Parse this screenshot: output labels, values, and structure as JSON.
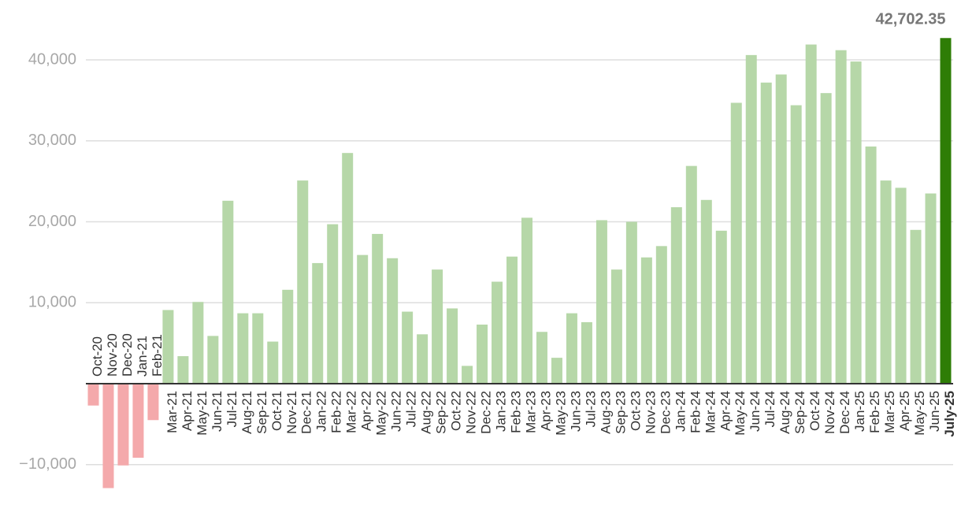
{
  "chart_data": {
    "type": "bar",
    "categories": [
      "Oct-20",
      "Nov-20",
      "Dec-20",
      "Jan-21",
      "Feb-21",
      "Mar-21",
      "Apr-21",
      "May-21",
      "Jun-21",
      "Jul-21",
      "Aug-21",
      "Sep-21",
      "Oct-21",
      "Nov-21",
      "Dec-21",
      "Jan-22",
      "Feb-22",
      "Mar-22",
      "Apr-22",
      "May-22",
      "Jun-22",
      "Jul-22",
      "Aug-22",
      "Sep-22",
      "Oct-22",
      "Nov-22",
      "Dec-22",
      "Jan-23",
      "Feb-23",
      "Mar-23",
      "Apr-23",
      "May-23",
      "Jun-23",
      "Jul-23",
      "Aug-23",
      "Sep-23",
      "Oct-23",
      "Nov-23",
      "Dec-23",
      "Jan-24",
      "Feb-24",
      "Mar-24",
      "Apr-24",
      "May-24",
      "Jun-24",
      "Jul-24",
      "Aug-24",
      "Sep-24",
      "Oct-24",
      "Nov-24",
      "Dec-24",
      "Jan-25",
      "Feb-25",
      "Mar-25",
      "Apr-25",
      "May-25",
      "Jun-25",
      "July-25"
    ],
    "values": [
      -2700,
      -12900,
      -10100,
      -9150,
      -4500,
      9100,
      3400,
      10100,
      5900,
      22600,
      8700,
      8700,
      5200,
      11600,
      25100,
      14900,
      19700,
      28500,
      15900,
      18500,
      15500,
      8900,
      6100,
      14100,
      9300,
      2200,
      7300,
      12600,
      15700,
      20500,
      6400,
      3200,
      8700,
      7600,
      20200,
      14100,
      20000,
      15600,
      17000,
      21800,
      26900,
      22700,
      18900,
      34700,
      40600,
      37200,
      38200,
      34400,
      41900,
      35900,
      41200,
      39800,
      29300,
      25100,
      24200,
      19000,
      23500,
      42702.35
    ],
    "value_labels": [
      null,
      null,
      null,
      null,
      null,
      null,
      null,
      null,
      null,
      null,
      null,
      null,
      null,
      null,
      null,
      null,
      null,
      null,
      null,
      null,
      null,
      null,
      null,
      null,
      null,
      null,
      null,
      null,
      null,
      null,
      null,
      null,
      null,
      null,
      null,
      null,
      null,
      null,
      null,
      null,
      null,
      null,
      null,
      null,
      null,
      null,
      null,
      null,
      null,
      null,
      null,
      null,
      null,
      null,
      null,
      null,
      null,
      "42,702.35"
    ],
    "colors": [
      "#f4a9ab",
      "#f4a9ab",
      "#f4a9ab",
      "#f4a9ab",
      "#f4a9ab",
      "#b6d7a8",
      "#b6d7a8",
      "#b6d7a8",
      "#b6d7a8",
      "#b6d7a8",
      "#b6d7a8",
      "#b6d7a8",
      "#b6d7a8",
      "#b6d7a8",
      "#b6d7a8",
      "#b6d7a8",
      "#b6d7a8",
      "#b6d7a8",
      "#b6d7a8",
      "#b6d7a8",
      "#b6d7a8",
      "#b6d7a8",
      "#b6d7a8",
      "#b6d7a8",
      "#b6d7a8",
      "#b6d7a8",
      "#b6d7a8",
      "#b6d7a8",
      "#b6d7a8",
      "#b6d7a8",
      "#b6d7a8",
      "#b6d7a8",
      "#b6d7a8",
      "#b6d7a8",
      "#b6d7a8",
      "#b6d7a8",
      "#b6d7a8",
      "#b6d7a8",
      "#b6d7a8",
      "#b6d7a8",
      "#b6d7a8",
      "#b6d7a8",
      "#b6d7a8",
      "#b6d7a8",
      "#b6d7a8",
      "#b6d7a8",
      "#b6d7a8",
      "#b6d7a8",
      "#b6d7a8",
      "#b6d7a8",
      "#b6d7a8",
      "#b6d7a8",
      "#b6d7a8",
      "#b6d7a8",
      "#b6d7a8",
      "#b6d7a8",
      "#b6d7a8",
      "#2e7d06"
    ],
    "ylim": [
      -18200,
      47400
    ],
    "yticks": [
      {
        "value": -10000,
        "label": "−10,000"
      },
      {
        "value": 10000,
        "label": "10,000"
      },
      {
        "value": 20000,
        "label": "20,000"
      },
      {
        "value": 30000,
        "label": "30,000"
      },
      {
        "value": 40000,
        "label": "40,000"
      }
    ],
    "grid": true
  }
}
